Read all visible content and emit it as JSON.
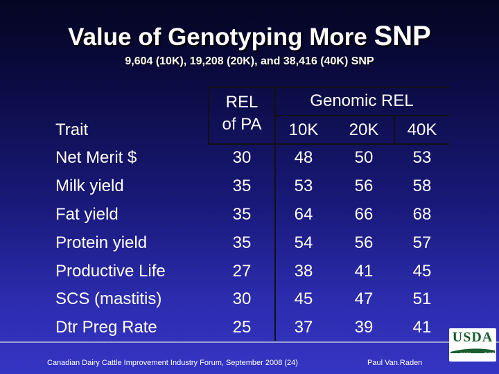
{
  "slide": {
    "title_main": "Value of Genotyping More ",
    "title_snp": "SNP",
    "subtitle": "9,604 (10K), 19,208 (20K), and 38,416 (40K) SNP"
  },
  "table": {
    "trait_header": "Trait",
    "rel_header_line1": "REL",
    "rel_header_line2": "of PA",
    "genomic_header": "Genomic REL",
    "col_10k": "10K",
    "col_20k": "20K",
    "col_40k": "40K",
    "rows": [
      {
        "trait": "Net Merit $",
        "rel_pa": "30",
        "g10k": "48",
        "g20k": "50",
        "g40k": "53"
      },
      {
        "trait": "Milk yield",
        "rel_pa": "35",
        "g10k": "53",
        "g20k": "56",
        "g40k": "58"
      },
      {
        "trait": "Fat yield",
        "rel_pa": "35",
        "g10k": "64",
        "g20k": "66",
        "g40k": "68"
      },
      {
        "trait": "Protein yield",
        "rel_pa": "35",
        "g10k": "54",
        "g20k": "56",
        "g40k": "57"
      },
      {
        "trait": "Productive Life",
        "rel_pa": "27",
        "g10k": "38",
        "g20k": "41",
        "g40k": "45"
      },
      {
        "trait": "SCS (mastitis)",
        "rel_pa": "30",
        "g10k": "45",
        "g20k": "47",
        "g40k": "51"
      },
      {
        "trait": "Dtr Preg Rate",
        "rel_pa": "25",
        "g10k": "37",
        "g20k": "39",
        "g40k": "41"
      }
    ]
  },
  "footer": {
    "left": "Canadian Dairy Cattle Improvement Industry Forum, September 2008 (24)",
    "right": "Paul Van.Raden"
  },
  "logo": {
    "usda": "USDA",
    "year": "2008",
    "ars": "ars"
  },
  "colors": {
    "text": "#ffffff",
    "usda_green": "#1a5d2e"
  }
}
